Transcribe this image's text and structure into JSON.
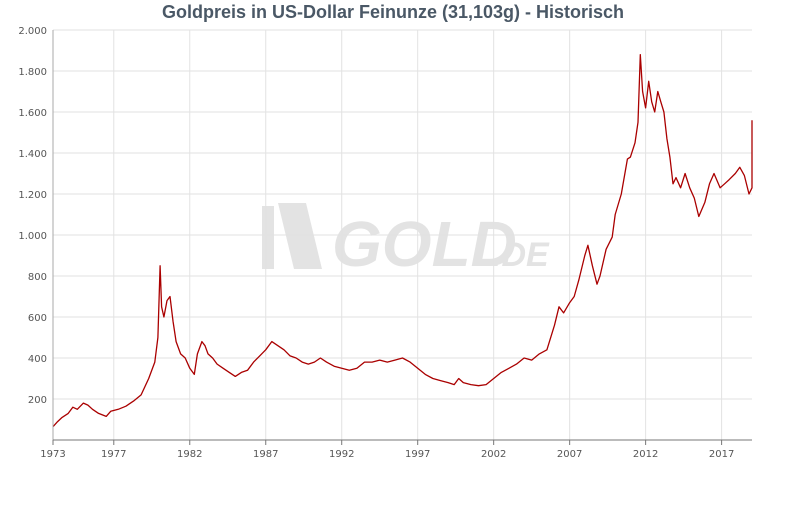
{
  "chart_data": {
    "type": "line",
    "title": "Goldpreis in US-Dollar Feinunze (31,103g) - Historisch",
    "xlabel": "",
    "ylabel": "",
    "xlim": [
      1973.0,
      2019.0
    ],
    "ylim": [
      0,
      2000
    ],
    "x_ticks": [
      1973,
      1977,
      1982,
      1987,
      1992,
      1997,
      2002,
      2007,
      2012,
      2017
    ],
    "y_ticks": [
      200,
      400,
      600,
      800,
      1000,
      1200,
      1400,
      1600,
      1800,
      2000
    ],
    "y_tick_labels": [
      "200",
      "400",
      "600",
      "800",
      "1.000",
      "1.200",
      "1.400",
      "1.600",
      "1.800",
      "2.000"
    ],
    "x_tick_labels": [
      "1973",
      "1977",
      "1982",
      "1987",
      "1992",
      "1997",
      "2002",
      "2007",
      "2012",
      "2017"
    ],
    "grid": true,
    "legend": "none",
    "series": [
      {
        "color": "#aa0000",
        "x": [
          1973.0,
          1973.3,
          1973.6,
          1974.0,
          1974.3,
          1974.6,
          1975.0,
          1975.3,
          1975.6,
          1976.0,
          1976.5,
          1976.8,
          1977.3,
          1977.8,
          1978.3,
          1978.8,
          1979.3,
          1979.7,
          1979.9,
          1980.05,
          1980.15,
          1980.3,
          1980.5,
          1980.7,
          1980.9,
          1981.1,
          1981.4,
          1981.7,
          1982.0,
          1982.3,
          1982.5,
          1982.8,
          1983.0,
          1983.2,
          1983.5,
          1983.8,
          1984.2,
          1984.6,
          1985.0,
          1985.4,
          1985.8,
          1986.2,
          1986.6,
          1987.0,
          1987.4,
          1987.8,
          1988.2,
          1988.6,
          1989.0,
          1989.4,
          1989.8,
          1990.2,
          1990.6,
          1991.0,
          1991.5,
          1992.0,
          1992.5,
          1993.0,
          1993.5,
          1994.0,
          1994.5,
          1995.0,
          1995.5,
          1996.0,
          1996.5,
          1997.0,
          1997.5,
          1998.0,
          1998.5,
          1999.0,
          1999.4,
          1999.7,
          2000.0,
          2000.5,
          2001.0,
          2001.5,
          2002.0,
          2002.5,
          2003.0,
          2003.5,
          2004.0,
          2004.5,
          2005.0,
          2005.5,
          2006.0,
          2006.3,
          2006.6,
          2007.0,
          2007.3,
          2007.6,
          2008.0,
          2008.2,
          2008.5,
          2008.8,
          2009.0,
          2009.4,
          2009.8,
          2010.0,
          2010.4,
          2010.8,
          2011.0,
          2011.3,
          2011.5,
          2011.65,
          2011.8,
          2012.0,
          2012.2,
          2012.4,
          2012.6,
          2012.8,
          2013.0,
          2013.2,
          2013.4,
          2013.6,
          2013.8,
          2014.0,
          2014.3,
          2014.6,
          2014.9,
          2015.2,
          2015.5,
          2015.9,
          2016.2,
          2016.5,
          2016.9,
          2017.2,
          2017.5,
          2017.9,
          2018.2,
          2018.5,
          2018.8,
          2019.0,
          2019.2,
          2019.4,
          2019.6,
          2019.8,
          2019.95,
          2020.0
        ],
        "y": [
          65,
          90,
          110,
          130,
          160,
          150,
          180,
          170,
          150,
          130,
          115,
          140,
          150,
          165,
          190,
          220,
          300,
          380,
          500,
          850,
          650,
          600,
          680,
          700,
          580,
          480,
          420,
          400,
          350,
          320,
          420,
          480,
          460,
          420,
          400,
          370,
          350,
          330,
          310,
          330,
          340,
          380,
          410,
          440,
          480,
          460,
          440,
          410,
          400,
          380,
          370,
          380,
          400,
          380,
          360,
          350,
          340,
          350,
          380,
          380,
          390,
          380,
          390,
          400,
          380,
          350,
          320,
          300,
          290,
          280,
          270,
          300,
          280,
          270,
          265,
          270,
          300,
          330,
          350,
          370,
          400,
          390,
          420,
          440,
          560,
          650,
          620,
          670,
          700,
          780,
          900,
          950,
          850,
          760,
          800,
          930,
          990,
          1100,
          1200,
          1370,
          1380,
          1450,
          1550,
          1880,
          1700,
          1620,
          1750,
          1650,
          1600,
          1700,
          1650,
          1600,
          1470,
          1380,
          1250,
          1280,
          1230,
          1300,
          1230,
          1180,
          1090,
          1160,
          1250,
          1300,
          1230,
          1250,
          1270,
          1300,
          1330,
          1290,
          1200,
          1230,
          1300,
          1350,
          1450,
          1530,
          1470,
          1560
        ]
      }
    ],
    "watermark": "GOLD.DE",
    "watermark_suffix": ".DE",
    "watermark_main": "GOLD"
  }
}
